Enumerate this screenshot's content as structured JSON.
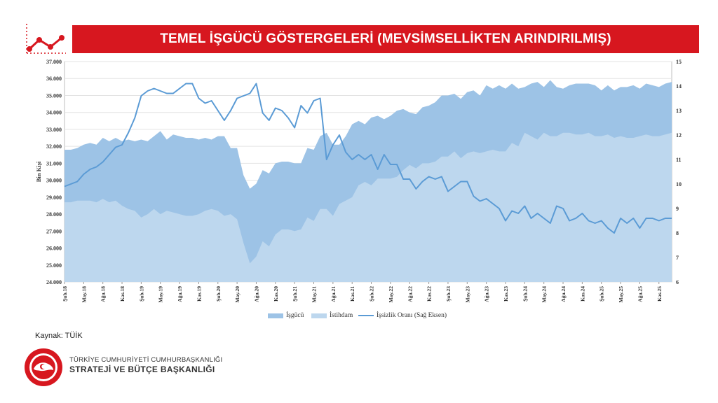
{
  "header": {
    "title": "TEMEL İŞGÜCÜ GÖSTERGELERİ (MEVSİMSELLİKTEN ARINDIRILMIŞ)"
  },
  "footer": {
    "source": "Kaynak: TÜİK",
    "org_line1": "TÜRKİYE CUMHURİYETİ CUMHURBAŞKANLIĞI",
    "org_line2": "STRATEJİ VE BÜTÇE BAŞKANLIĞI"
  },
  "colors": {
    "accent": "#d7171f",
    "labor_force": "#9dc3e6",
    "employment": "#bdd7ee",
    "unemployment_line": "#5b9bd5"
  },
  "chart_data": {
    "type": "area",
    "xlabel": "",
    "ylabel": "Bin Kişi",
    "ylim": [
      24000,
      37000
    ],
    "y2lim": [
      6,
      15
    ],
    "y_ticks": [
      "24.000",
      "25.000",
      "26.000",
      "27.000",
      "28.000",
      "29.000",
      "30.000",
      "31.000",
      "32.000",
      "33.000",
      "34.000",
      "35.000",
      "36.000",
      "37.000"
    ],
    "y2_ticks": [
      "6",
      "7",
      "8",
      "9",
      "10",
      "11",
      "12",
      "13",
      "14",
      "15"
    ],
    "x_tick_labels": [
      "Şub.18",
      "May.18",
      "Ağu.18",
      "Kas.18",
      "Şub.19",
      "May.19",
      "Ağu.19",
      "Kas.19",
      "Şub.20",
      "May.20",
      "Ağu.20",
      "Kas.20",
      "Şub.21",
      "May.21",
      "Ağu.21",
      "Kas.21",
      "Şub.22",
      "May.22",
      "Ağu.22",
      "Kas.22",
      "Şub.23",
      "May.23",
      "Ağu.23",
      "Kas.23",
      "Şub.24",
      "May.24",
      "Ağu.24",
      "Kas.24",
      "Şub.25",
      "May.25",
      "Ağu.25",
      "Kas.25"
    ],
    "grid": true,
    "legend_position": "bottom",
    "series": [
      {
        "name": "İşgücü",
        "kind": "area",
        "axis": "left",
        "values": [
          31800,
          31800,
          31900,
          32100,
          32200,
          32100,
          32500,
          32300,
          32500,
          32300,
          32400,
          32300,
          32400,
          32300,
          32600,
          32900,
          32400,
          32700,
          32600,
          32500,
          32500,
          32400,
          32500,
          32400,
          32600,
          32600,
          31900,
          31900,
          30300,
          29500,
          29800,
          30600,
          30400,
          31000,
          31100,
          31100,
          31000,
          31000,
          31900,
          31800,
          32600,
          32800,
          32100,
          32100,
          32600,
          33300,
          33500,
          33300,
          33700,
          33800,
          33600,
          33800,
          34100,
          34200,
          34000,
          33900,
          34300,
          34400,
          34600,
          35000,
          35000,
          35100,
          34800,
          35200,
          35300,
          35000,
          35600,
          35400,
          35600,
          35400,
          35700,
          35400,
          35500,
          35700,
          35800,
          35500,
          35900,
          35500,
          35400,
          35600,
          35700,
          35700,
          35700,
          35600,
          35300,
          35600,
          35300,
          35500,
          35500,
          35600,
          35400,
          35700,
          35600,
          35500,
          35700,
          35800
        ]
      },
      {
        "name": "İstihdam",
        "kind": "area",
        "axis": "left",
        "values": [
          28700,
          28700,
          28800,
          28800,
          28800,
          28700,
          28900,
          28700,
          28800,
          28500,
          28300,
          28200,
          27800,
          28000,
          28300,
          28000,
          28200,
          28100,
          28000,
          27900,
          27900,
          28000,
          28200,
          28300,
          28200,
          27900,
          28000,
          27700,
          26300,
          25100,
          25500,
          26400,
          26100,
          26800,
          27100,
          27100,
          27000,
          27100,
          27800,
          27600,
          28300,
          28300,
          27900,
          28600,
          28800,
          29000,
          29700,
          29900,
          29700,
          30100,
          30100,
          30100,
          30200,
          30600,
          30900,
          30700,
          31000,
          31000,
          31100,
          31400,
          31400,
          31700,
          31300,
          31600,
          31700,
          31600,
          31700,
          31800,
          31700,
          31700,
          32200,
          32000,
          32800,
          32600,
          32400,
          32800,
          32600,
          32600,
          32800,
          32800,
          32700,
          32700,
          32800,
          32600,
          32600,
          32700,
          32500,
          32600,
          32500,
          32500,
          32600,
          32700,
          32600,
          32600,
          32700,
          32800
        ]
      },
      {
        "name": "İşsizlik Oranı (Sağ Eksen)",
        "kind": "line",
        "axis": "right",
        "values": [
          9.9,
          10.0,
          10.1,
          10.4,
          10.6,
          10.7,
          10.9,
          11.2,
          11.5,
          11.6,
          12.1,
          12.7,
          13.6,
          13.8,
          13.9,
          13.8,
          13.7,
          13.7,
          13.9,
          14.1,
          14.1,
          13.5,
          13.3,
          13.4,
          13.0,
          12.6,
          13.0,
          13.5,
          13.6,
          13.7,
          14.1,
          12.9,
          12.6,
          13.1,
          13.0,
          12.7,
          12.3,
          13.2,
          12.9,
          13.4,
          13.5,
          11.0,
          11.6,
          12.0,
          11.3,
          11.0,
          11.2,
          11.0,
          11.2,
          10.6,
          11.2,
          10.8,
          10.8,
          10.2,
          10.2,
          9.8,
          10.1,
          10.3,
          10.2,
          10.3,
          9.7,
          9.9,
          10.1,
          10.1,
          9.5,
          9.3,
          9.4,
          9.2,
          9.0,
          8.5,
          8.9,
          8.8,
          9.1,
          8.6,
          8.8,
          8.6,
          8.4,
          9.1,
          9.0,
          8.5,
          8.6,
          8.8,
          8.5,
          8.4,
          8.5,
          8.2,
          8.0,
          8.6,
          8.4,
          8.6,
          8.2,
          8.6,
          8.6,
          8.5,
          8.6,
          8.6
        ]
      }
    ]
  }
}
